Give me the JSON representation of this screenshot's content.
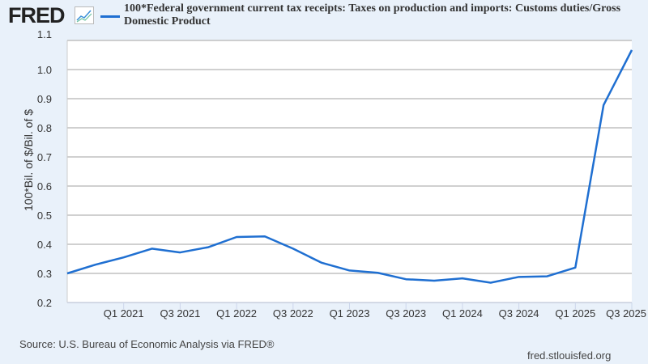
{
  "header": {
    "logo": "FRED",
    "logo_icon": "line-chart-icon",
    "title": "100*Federal government current tax receipts: Taxes on production and imports: Customs duties/Gross Domestic Product"
  },
  "footer": {
    "source": "Source: U.S. Bureau of Economic Analysis via FRED®",
    "site": "fred.stlouisfed.org"
  },
  "colors": {
    "series": "#1f6fd1",
    "background": "#e9f1fa",
    "grid": "#c0c0c0"
  },
  "chart_data": {
    "type": "line",
    "title": "100*Federal government current tax receipts: Taxes on production and imports: Customs duties/Gross Domestic Product",
    "ylabel": "100*Bil. of $/Bil. of $",
    "xlabel": "",
    "ylim": [
      0.2,
      1.1
    ],
    "yticks": [
      "0.2",
      "0.3",
      "0.4",
      "0.5",
      "0.6",
      "0.7",
      "0.8",
      "0.9",
      "1.0",
      "1.1"
    ],
    "xticks": [
      "Q1 2021",
      "Q3 2021",
      "Q1 2022",
      "Q3 2022",
      "Q1 2023",
      "Q3 2023",
      "Q1 2024",
      "Q3 2024",
      "Q1 2025",
      "Q3 2025"
    ],
    "grid": true,
    "x": [
      "Q3 2020",
      "Q4 2020",
      "Q1 2021",
      "Q2 2021",
      "Q3 2021",
      "Q4 2021",
      "Q1 2022",
      "Q2 2022",
      "Q3 2022",
      "Q4 2022",
      "Q1 2023",
      "Q2 2023",
      "Q3 2023",
      "Q4 2023",
      "Q1 2024",
      "Q2 2024",
      "Q3 2024",
      "Q4 2024",
      "Q1 2025",
      "Q2 2025",
      "Q3 2025"
    ],
    "values": [
      0.3,
      0.33,
      0.355,
      0.385,
      0.372,
      0.39,
      0.425,
      0.427,
      0.385,
      0.337,
      0.31,
      0.302,
      0.28,
      0.275,
      0.283,
      0.268,
      0.288,
      0.29,
      0.32,
      0.878,
      1.067
    ]
  }
}
